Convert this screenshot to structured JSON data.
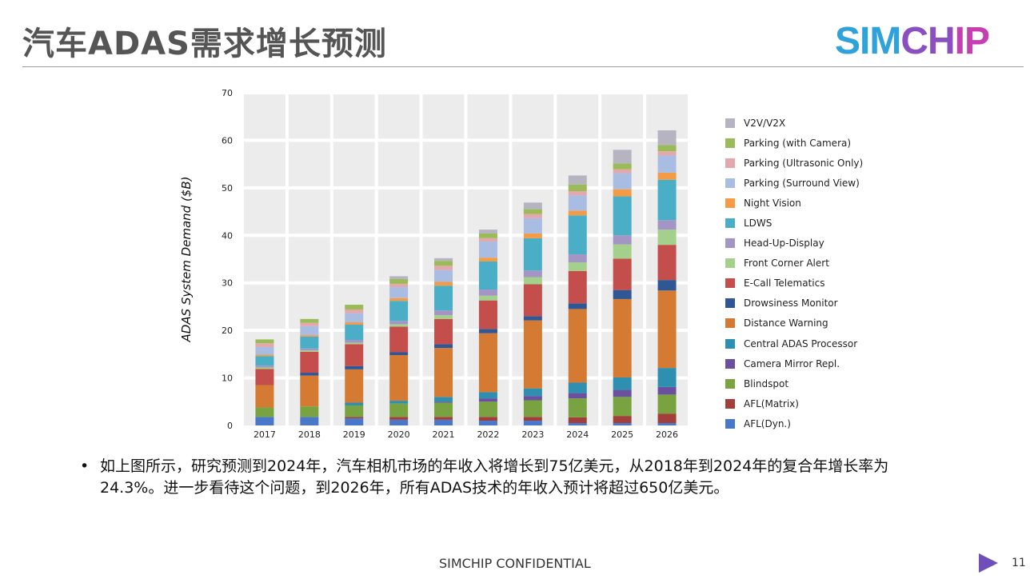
{
  "slide": {
    "title": "汽车ADAS需求增长预测",
    "logo": {
      "part1": "SIM",
      "part2": "CH",
      "part3": "IP"
    },
    "bullet_symbol": "•",
    "bullet_text": "如上图所示，研究预测到2024年，汽车相机市场的年收入将增长到75亿美元，从2018年到2024年的复合年增长率为24.3%。进一步看待这个问题，到2026年，所有ADAS技术的年收入预计将超过650亿美元。",
    "footer": "SIMCHIP CONFIDENTIAL",
    "page_number": "11",
    "colors": {
      "title": "#555555",
      "logo_blue": "#2fa2d9",
      "logo_purple": "#8a4fc1",
      "logo_pink": "#c63fb0",
      "arrow": "#6f4fb8"
    }
  },
  "chart_data": {
    "type": "bar",
    "stacked": true,
    "title": "",
    "xlabel": "",
    "ylabel": "ADAS System Demand ($B)",
    "ylim": [
      0,
      70
    ],
    "yticks": [
      0,
      10,
      20,
      30,
      40,
      50,
      60,
      70
    ],
    "categories": [
      "2017",
      "2018",
      "2019",
      "2020",
      "2021",
      "2022",
      "2023",
      "2024",
      "2025",
      "2026"
    ],
    "legend_position": "right",
    "series": [
      {
        "name": "AFL(Dyn.)",
        "color": "#4a78c8",
        "values": [
          1.8,
          1.8,
          1.5,
          1.2,
          1.2,
          1.0,
          1.0,
          0.5,
          0.5,
          0.5
        ]
      },
      {
        "name": "AFL(Matrix)",
        "color": "#a33f3b",
        "values": [
          0,
          0,
          0.3,
          0.6,
          0.6,
          0.8,
          0.8,
          1.2,
          1.5,
          2.0
        ]
      },
      {
        "name": "Blindspot",
        "color": "#79a340",
        "values": [
          2.0,
          2.2,
          2.4,
          2.8,
          3.0,
          3.2,
          3.5,
          4.0,
          4.0,
          4.0
        ]
      },
      {
        "name": "Camera Mirror Repl.",
        "color": "#6b50a0",
        "values": [
          0,
          0,
          0,
          0,
          0.2,
          0.7,
          0.9,
          1.1,
          1.5,
          1.6
        ]
      },
      {
        "name": "Central ADAS Processor",
        "color": "#2f8fb0",
        "values": [
          0,
          0,
          0.6,
          0.6,
          1.0,
          1.3,
          1.6,
          2.2,
          2.6,
          4.0
        ]
      },
      {
        "name": "Distance Warning",
        "color": "#d57a33",
        "values": [
          4.7,
          6.5,
          7.0,
          9.6,
          10.3,
          12.4,
          14.3,
          15.5,
          16.5,
          16.3
        ]
      },
      {
        "name": "Drowsiness Monitor",
        "color": "#2e5793",
        "values": [
          0,
          0.6,
          0.7,
          0.6,
          0.8,
          0.9,
          0.9,
          1.2,
          1.9,
          2.2
        ]
      },
      {
        "name": "E-Call Telematics",
        "color": "#c44e4b",
        "values": [
          3.4,
          4.4,
          4.6,
          5.4,
          5.3,
          6.0,
          6.7,
          6.8,
          6.6,
          7.4
        ]
      },
      {
        "name": "Front Corner Alert",
        "color": "#a3d08a",
        "values": [
          0.3,
          0.3,
          0.3,
          0.5,
          0.8,
          1.0,
          1.5,
          1.8,
          3.0,
          3.2
        ]
      },
      {
        "name": "Head-Up-Display",
        "color": "#a396c4",
        "values": [
          0.4,
          0.4,
          0.6,
          0.7,
          1.0,
          1.3,
          1.4,
          1.7,
          1.9,
          2.0
        ]
      },
      {
        "name": "LDWS",
        "color": "#4aaec7",
        "values": [
          2.0,
          2.5,
          3.2,
          4.2,
          5.2,
          5.9,
          6.8,
          8.2,
          8.2,
          8.5
        ]
      },
      {
        "name": "Night Vision",
        "color": "#f59a45",
        "values": [
          0.3,
          0.3,
          0.5,
          0.6,
          0.8,
          0.8,
          1.0,
          1.0,
          1.5,
          1.5
        ]
      },
      {
        "name": "Parking (Surround View)",
        "color": "#a9bde3",
        "values": [
          1.6,
          1.9,
          1.9,
          2.3,
          2.5,
          3.4,
          3.2,
          3.2,
          3.4,
          3.6
        ]
      },
      {
        "name": "Parking (Ultrasonic Only)",
        "color": "#e3a8ab",
        "values": [
          0.8,
          0.7,
          0.8,
          0.7,
          0.9,
          0.7,
          0.9,
          0.9,
          0.8,
          0.9
        ]
      },
      {
        "name": "Parking (with Camera)",
        "color": "#9bbb59",
        "values": [
          0.8,
          0.8,
          1.0,
          1.0,
          1.0,
          1.0,
          1.0,
          1.4,
          1.2,
          1.3
        ]
      },
      {
        "name": "V2V/V2X",
        "color": "#b7b4c1",
        "values": [
          0,
          0,
          0,
          0.6,
          0.6,
          0.8,
          1.4,
          1.9,
          2.9,
          3.1
        ]
      }
    ]
  }
}
